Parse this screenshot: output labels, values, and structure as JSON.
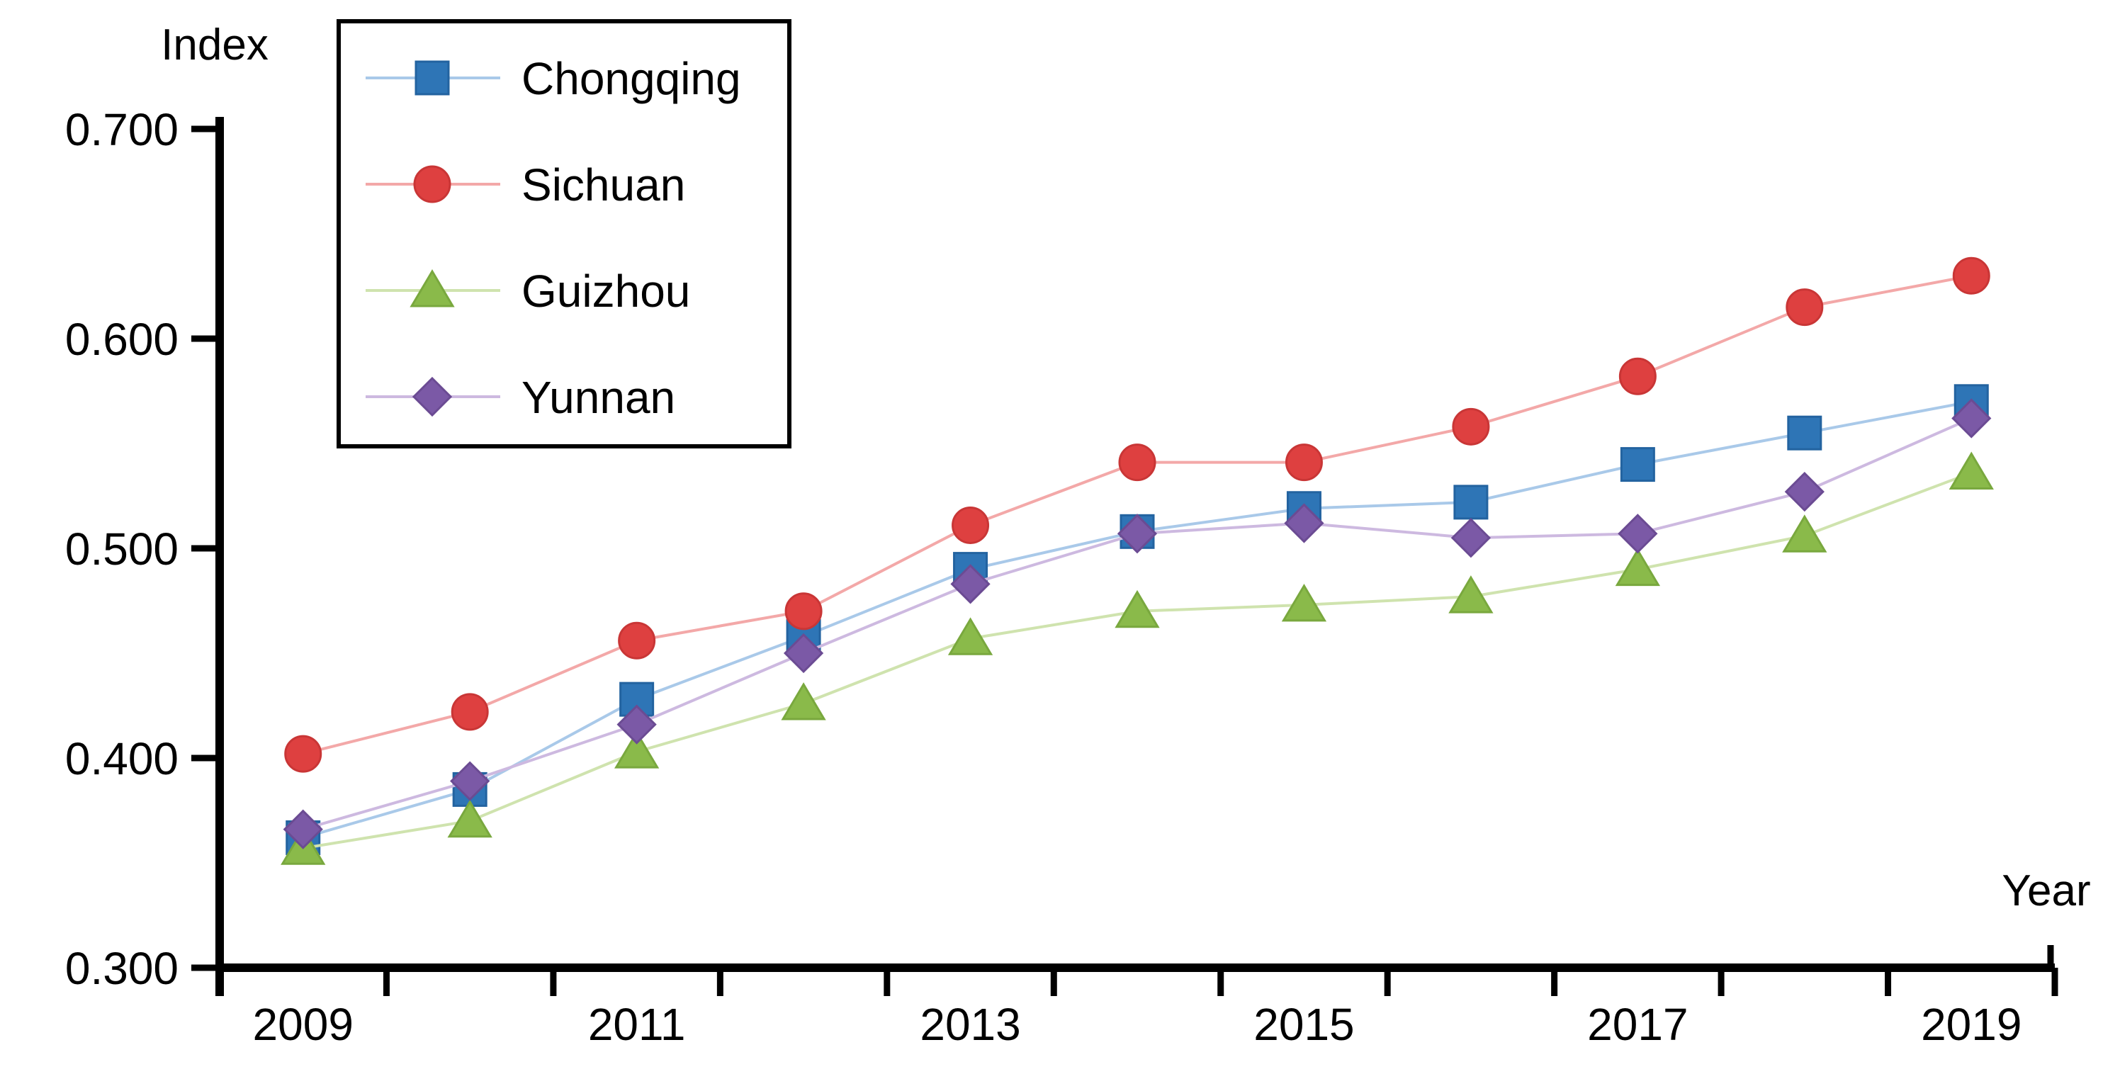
{
  "chart_data": {
    "type": "line",
    "title": "",
    "xlabel": "Year",
    "ylabel": "Index",
    "x": [
      2009,
      2010,
      2011,
      2012,
      2013,
      2014,
      2015,
      2016,
      2017,
      2018,
      2019
    ],
    "x_tick_labels": [
      "2009",
      "2011",
      "2013",
      "2015",
      "2017",
      "2019"
    ],
    "y_tick_labels": [
      "0.700",
      "0.600",
      "0.500",
      "0.400",
      "0.300"
    ],
    "y_tick_values": [
      0.7,
      0.6,
      0.5,
      0.4,
      0.3
    ],
    "ylim": [
      0.3,
      0.7
    ],
    "grid": false,
    "legend_position": "top-left-box",
    "axis_color": "#000000",
    "background_color": "#ffffff",
    "series": [
      {
        "name": "Chongqing",
        "marker": "square",
        "color": "#2e75b6",
        "line_color": "#a9c9e9",
        "values": [
          0.362,
          0.385,
          0.428,
          0.458,
          0.49,
          0.508,
          0.519,
          0.522,
          0.54,
          0.555,
          0.57
        ]
      },
      {
        "name": "Sichuan",
        "marker": "circle",
        "color": "#de4040",
        "line_color": "#f3a8a8",
        "values": [
          0.402,
          0.422,
          0.456,
          0.47,
          0.511,
          0.541,
          0.541,
          0.558,
          0.582,
          0.615,
          0.63
        ]
      },
      {
        "name": "Guizhou",
        "marker": "triangle",
        "color": "#8aba4a",
        "line_color": "#cfe3ae",
        "values": [
          0.357,
          0.37,
          0.403,
          0.426,
          0.457,
          0.47,
          0.473,
          0.477,
          0.49,
          0.506,
          0.536
        ]
      },
      {
        "name": "Yunnan",
        "marker": "diamond",
        "color": "#7b59a6",
        "line_color": "#cdb9e0",
        "values": [
          0.366,
          0.389,
          0.416,
          0.45,
          0.483,
          0.507,
          0.512,
          0.505,
          0.507,
          0.527,
          0.562
        ]
      }
    ]
  }
}
